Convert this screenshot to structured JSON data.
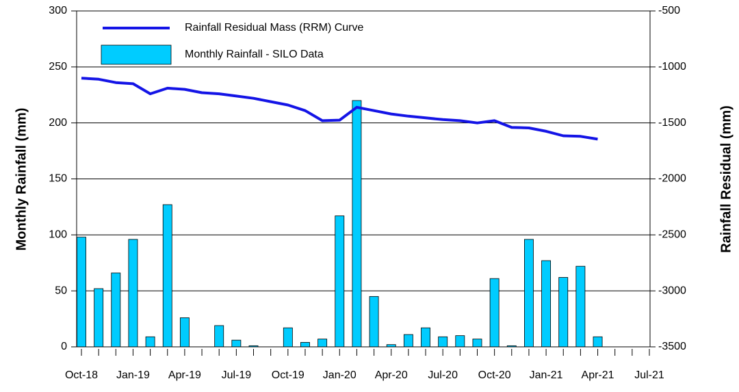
{
  "chart_data": {
    "type": "bar_line",
    "categories": [
      "Oct-18",
      null,
      null,
      "Jan-19",
      null,
      null,
      "Apr-19",
      null,
      null,
      "Jul-19",
      null,
      null,
      "Oct-19",
      null,
      null,
      "Jan-20",
      null,
      null,
      "Apr-20",
      null,
      null,
      "Jul-20",
      null,
      null,
      "Oct-20",
      null,
      null,
      "Jan-21",
      null,
      null,
      "Apr-21",
      null,
      null,
      "Jul-21"
    ],
    "series": [
      {
        "name": "Rainfall Residual Mass (RRM) Curve",
        "color": "#1414e6",
        "axis": "y2",
        "values": [
          -1100,
          -1110,
          -1140,
          -1150,
          -1240,
          -1190,
          -1200,
          -1230,
          -1240,
          -1260,
          -1280,
          -1310,
          -1340,
          -1390,
          -1480,
          -1475,
          -1360,
          -1390,
          -1420,
          -1440,
          -1455,
          -1470,
          -1480,
          -1500,
          -1480,
          -1540,
          -1545,
          -1575,
          -1615,
          -1620,
          -1645,
          null,
          null,
          null
        ]
      },
      {
        "name": "Monthly Rainfall - SILO Data",
        "color": "#00ccff",
        "values": [
          98,
          52,
          66,
          96,
          9,
          127,
          26,
          0,
          19,
          6,
          1,
          0,
          17,
          4,
          7,
          117,
          220,
          45,
          2,
          11,
          17,
          9,
          10,
          7,
          61,
          1,
          96,
          77,
          62,
          72,
          9,
          null,
          null,
          null
        ]
      }
    ],
    "ylabel": "Monthly Rainfall (mm)",
    "y2label": "Rainfall Residual (mm)",
    "ylim": [
      0,
      300
    ],
    "yticks": [
      0,
      50,
      100,
      150,
      200,
      250,
      300
    ],
    "y2lim": [
      -3500,
      -500
    ],
    "y2ticks": [
      -3500,
      -3000,
      -2500,
      -2000,
      -1500,
      -1000,
      -500
    ],
    "grid": true,
    "legend": "upper left"
  }
}
